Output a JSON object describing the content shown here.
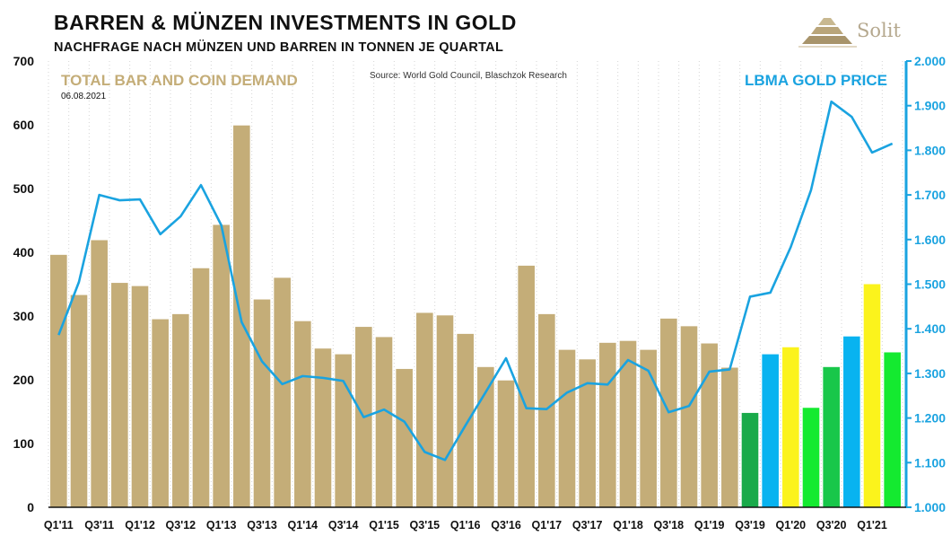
{
  "header": {
    "title": "BARREN & MÜNZEN INVESTMENTS IN GOLD",
    "subtitle": "NACHFRAGE NACH MÜNZEN UND BARREN IN TONNEN JE QUARTAL",
    "brand": "Solit",
    "brand_icon": "pyramid-icon"
  },
  "colors": {
    "bar_default": "#c4ad78",
    "line": "#1aa3e0",
    "label_left": "#c4ad78",
    "label_right": "#1aa3e0",
    "title": "#111111"
  },
  "chart_data": {
    "type": "bar+line",
    "title": "BARREN & MÜNZEN INVESTMENTS IN GOLD",
    "subtitle": "NACHFRAGE NACH MÜNZEN UND BARREN IN TONNEN JE QUARTAL",
    "source": "Source: World Gold Council, Blaschzok Research",
    "date": "06.08.2021",
    "categories": [
      "Q1'11",
      "Q2'11",
      "Q3'11",
      "Q4'11",
      "Q1'12",
      "Q2'12",
      "Q3'12",
      "Q4'12",
      "Q1'13",
      "Q2'13",
      "Q3'13",
      "Q4'13",
      "Q1'14",
      "Q2'14",
      "Q3'14",
      "Q4'14",
      "Q1'15",
      "Q2'15",
      "Q3'15",
      "Q4'15",
      "Q1'16",
      "Q2'16",
      "Q3'16",
      "Q4'16",
      "Q1'17",
      "Q2'17",
      "Q3'17",
      "Q4'17",
      "Q1'18",
      "Q2'18",
      "Q3'18",
      "Q4'18",
      "Q1'19",
      "Q2'19",
      "Q3'19",
      "Q4'19",
      "Q1'20",
      "Q2'20",
      "Q3'20",
      "Q4'20",
      "Q1'21",
      "Q2'21"
    ],
    "tick_labels": [
      "Q1'11",
      "Q3'11",
      "Q1'12",
      "Q3'12",
      "Q1'13",
      "Q3'13",
      "Q1'14",
      "Q3'14",
      "Q1'15",
      "Q3'15",
      "Q1'16",
      "Q3'16",
      "Q1'17",
      "Q3'17",
      "Q1'18",
      "Q3'18",
      "Q1'19",
      "Q3'19",
      "Q1'20",
      "Q3'20",
      "Q1'21"
    ],
    "series": [
      {
        "name": "TOTAL BAR AND COIN DEMAND",
        "type": "bar",
        "axis": "left",
        "values": [
          396,
          333,
          419,
          352,
          347,
          295,
          303,
          375,
          443,
          599,
          326,
          360,
          292,
          249,
          240,
          283,
          267,
          217,
          305,
          301,
          272,
          220,
          199,
          379,
          303,
          247,
          232,
          258,
          261,
          247,
          296,
          284,
          257,
          219,
          148,
          240,
          251,
          156,
          220,
          268,
          350,
          243
        ],
        "bar_colors": [
          "#c4ad78",
          "#c4ad78",
          "#c4ad78",
          "#c4ad78",
          "#c4ad78",
          "#c4ad78",
          "#c4ad78",
          "#c4ad78",
          "#c4ad78",
          "#c4ad78",
          "#c4ad78",
          "#c4ad78",
          "#c4ad78",
          "#c4ad78",
          "#c4ad78",
          "#c4ad78",
          "#c4ad78",
          "#c4ad78",
          "#c4ad78",
          "#c4ad78",
          "#c4ad78",
          "#c4ad78",
          "#c4ad78",
          "#c4ad78",
          "#c4ad78",
          "#c4ad78",
          "#c4ad78",
          "#c4ad78",
          "#c4ad78",
          "#c4ad78",
          "#c4ad78",
          "#c4ad78",
          "#c4ad78",
          "#c4ad78",
          "#19aa4a",
          "#08b3f0",
          "#fbf31c",
          "#14ea30",
          "#18c74a",
          "#08b3f0",
          "#fbf31c",
          "#14ea30"
        ]
      },
      {
        "name": "LBMA GOLD PRICE",
        "type": "line",
        "axis": "right",
        "values": [
          1386,
          1505,
          1700,
          1688,
          1690,
          1612,
          1652,
          1722,
          1632,
          1415,
          1327,
          1276,
          1294,
          1290,
          1283,
          1202,
          1219,
          1192,
          1124,
          1106,
          1183,
          1258,
          1334,
          1222,
          1220,
          1257,
          1278,
          1275,
          1330,
          1306,
          1213,
          1227,
          1304,
          1309,
          1472,
          1481,
          1583,
          1711,
          1909,
          1875,
          1795,
          1815
        ]
      }
    ],
    "left_axis": {
      "ylim": [
        0,
        700
      ],
      "ticks": [
        0,
        100,
        200,
        300,
        400,
        500,
        600,
        700
      ],
      "tick_labels": [
        "0",
        "100",
        "200",
        "300",
        "400",
        "500",
        "600",
        "700"
      ]
    },
    "right_axis": {
      "ylim": [
        1000,
        2000
      ],
      "ticks": [
        1000,
        1100,
        1200,
        1300,
        1400,
        1500,
        1600,
        1700,
        1800,
        1900,
        2000
      ],
      "tick_labels": [
        "1.000",
        "1.100",
        "1.200",
        "1.300",
        "1.400",
        "1.500",
        "1.600",
        "1.700",
        "1.800",
        "1.900",
        "2.000"
      ]
    },
    "grid": "vertical dotted",
    "legend": {
      "left_label": "TOTAL BAR AND COIN DEMAND",
      "right_label": "LBMA GOLD PRICE"
    }
  }
}
